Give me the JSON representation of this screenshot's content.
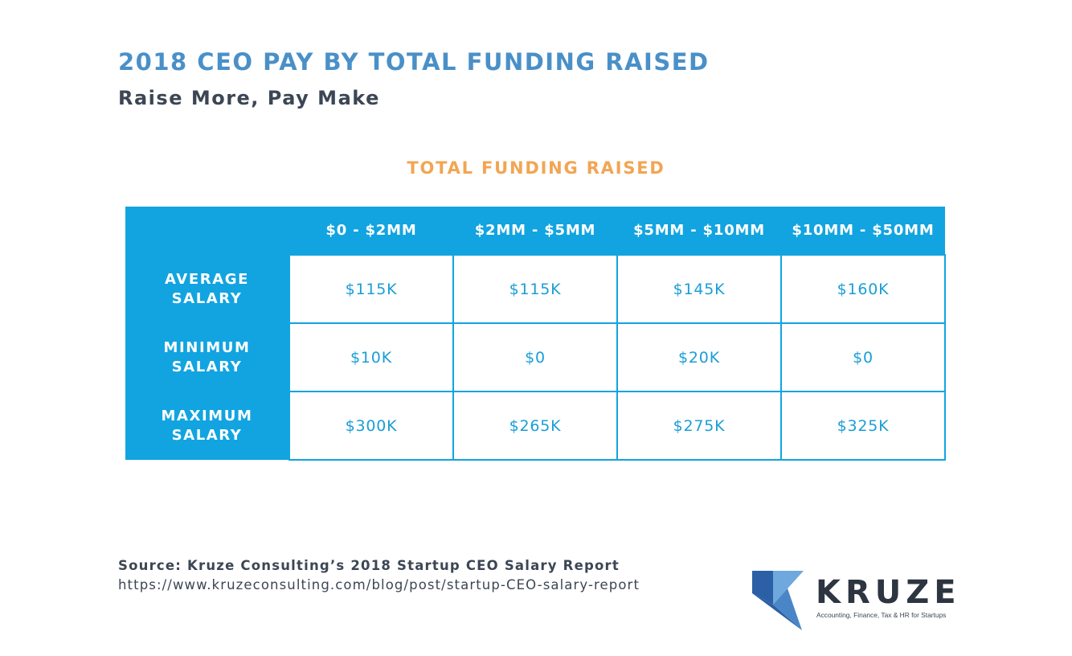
{
  "header": {
    "title": "2018 CEO PAY BY TOTAL FUNDING RAISED",
    "subtitle": "Raise More, Pay Make"
  },
  "chart_data": {
    "type": "table",
    "title": "TOTAL FUNDING RAISED",
    "columns": [
      "$0 - $2MM",
      "$2MM - $5MM",
      "$5MM - $10MM",
      "$10MM - $50MM"
    ],
    "rows": [
      {
        "label": "AVERAGE SALARY",
        "values": [
          "$115K",
          "$115K",
          "$145K",
          "$160K"
        ]
      },
      {
        "label": "MINIMUM SALARY",
        "values": [
          "$10K",
          "$0",
          "$20K",
          "$0"
        ]
      },
      {
        "label": "MAXIMUM SALARY",
        "values": [
          "$300K",
          "$265K",
          "$275K",
          "$325K"
        ]
      }
    ]
  },
  "footer": {
    "source": "Source: Kruze Consulting’s 2018 Startup CEO Salary Report",
    "url": "https://www.kruzeconsulting.com/blog/post/startup-CEO-salary-report"
  },
  "logo": {
    "wordmark": "KRUZE",
    "tagline": "Accounting, Finance, Tax & HR for Startups"
  },
  "colors": {
    "title": "#4a90c8",
    "subtitle": "#3c4654",
    "accent_orange": "#f2a553",
    "table_blue": "#12a4e0",
    "cell_text": "#1a9ed6",
    "logo_dark_blue": "#2b5fa6",
    "logo_light_blue": "#6fa8dc"
  }
}
